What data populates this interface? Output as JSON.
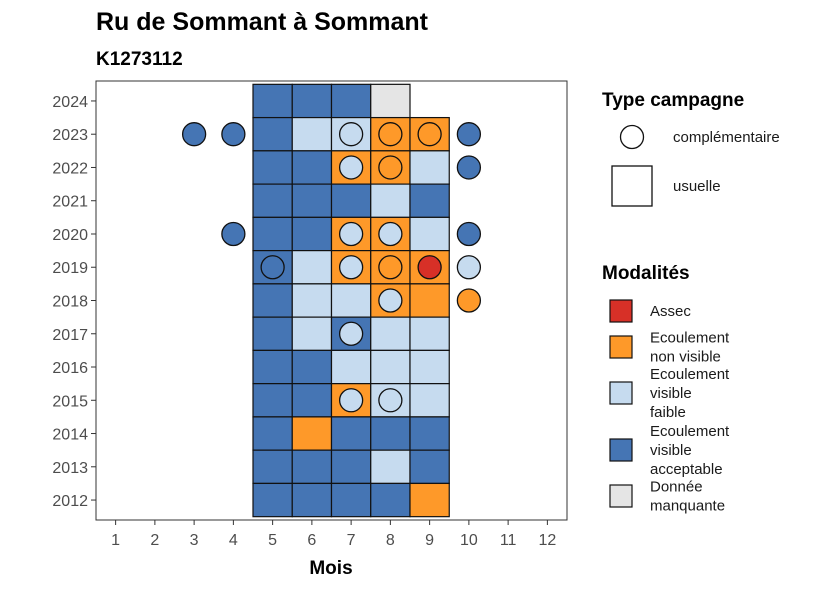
{
  "title": "Ru de Sommant à Sommant",
  "subtitle": "K1273112",
  "chart_data": {
    "type": "heatmap",
    "xlabel": "Mois",
    "ylabel": "",
    "x_ticks": [
      1,
      2,
      3,
      4,
      5,
      6,
      7,
      8,
      9,
      10,
      11,
      12
    ],
    "y_ticks": [
      2012,
      2013,
      2014,
      2015,
      2016,
      2017,
      2018,
      2019,
      2020,
      2021,
      2022,
      2023,
      2024
    ],
    "xlim": [
      0.5,
      12.5
    ],
    "ylim": [
      2011.4,
      2024.6
    ],
    "grid": false,
    "legend_position": "right",
    "colors": {
      "Assec": "#d73027",
      "Ecoulement non visible": "#fe9929",
      "Ecoulement visible faible": "#c6dbef",
      "Ecoulement visible acceptable": "#4575b4",
      "Donnée manquante": "#e5e5e5"
    },
    "usuelle": [
      {
        "year": 2024,
        "months": [
          [
            5,
            "Ecoulement visible acceptable"
          ],
          [
            6,
            "Ecoulement visible acceptable"
          ],
          [
            7,
            "Ecoulement visible acceptable"
          ],
          [
            8,
            "Donnée manquante"
          ]
        ]
      },
      {
        "year": 2023,
        "months": [
          [
            5,
            "Ecoulement visible acceptable"
          ],
          [
            6,
            "Ecoulement visible faible"
          ],
          [
            7,
            "Ecoulement visible faible"
          ],
          [
            8,
            "Ecoulement non visible"
          ],
          [
            9,
            "Ecoulement non visible"
          ]
        ]
      },
      {
        "year": 2022,
        "months": [
          [
            5,
            "Ecoulement visible acceptable"
          ],
          [
            6,
            "Ecoulement visible acceptable"
          ],
          [
            7,
            "Ecoulement non visible"
          ],
          [
            8,
            "Ecoulement non visible"
          ],
          [
            9,
            "Ecoulement visible faible"
          ]
        ]
      },
      {
        "year": 2021,
        "months": [
          [
            5,
            "Ecoulement visible acceptable"
          ],
          [
            6,
            "Ecoulement visible acceptable"
          ],
          [
            7,
            "Ecoulement visible acceptable"
          ],
          [
            8,
            "Ecoulement visible faible"
          ],
          [
            9,
            "Ecoulement visible acceptable"
          ]
        ]
      },
      {
        "year": 2020,
        "months": [
          [
            5,
            "Ecoulement visible acceptable"
          ],
          [
            6,
            "Ecoulement visible acceptable"
          ],
          [
            7,
            "Ecoulement non visible"
          ],
          [
            8,
            "Ecoulement non visible"
          ],
          [
            9,
            "Ecoulement visible faible"
          ]
        ]
      },
      {
        "year": 2019,
        "months": [
          [
            5,
            "Ecoulement visible acceptable"
          ],
          [
            6,
            "Ecoulement visible faible"
          ],
          [
            7,
            "Ecoulement non visible"
          ],
          [
            8,
            "Ecoulement non visible"
          ],
          [
            9,
            "Ecoulement non visible"
          ]
        ]
      },
      {
        "year": 2018,
        "months": [
          [
            5,
            "Ecoulement visible acceptable"
          ],
          [
            6,
            "Ecoulement visible faible"
          ],
          [
            7,
            "Ecoulement visible faible"
          ],
          [
            8,
            "Ecoulement non visible"
          ],
          [
            9,
            "Ecoulement non visible"
          ]
        ]
      },
      {
        "year": 2017,
        "months": [
          [
            5,
            "Ecoulement visible acceptable"
          ],
          [
            6,
            "Ecoulement visible faible"
          ],
          [
            7,
            "Ecoulement visible acceptable"
          ],
          [
            8,
            "Ecoulement visible faible"
          ],
          [
            9,
            "Ecoulement visible faible"
          ]
        ]
      },
      {
        "year": 2016,
        "months": [
          [
            5,
            "Ecoulement visible acceptable"
          ],
          [
            6,
            "Ecoulement visible acceptable"
          ],
          [
            7,
            "Ecoulement visible faible"
          ],
          [
            8,
            "Ecoulement visible faible"
          ],
          [
            9,
            "Ecoulement visible faible"
          ]
        ]
      },
      {
        "year": 2015,
        "months": [
          [
            5,
            "Ecoulement visible acceptable"
          ],
          [
            6,
            "Ecoulement visible acceptable"
          ],
          [
            7,
            "Ecoulement non visible"
          ],
          [
            8,
            "Ecoulement visible faible"
          ],
          [
            9,
            "Ecoulement visible faible"
          ]
        ]
      },
      {
        "year": 2014,
        "months": [
          [
            5,
            "Ecoulement visible acceptable"
          ],
          [
            6,
            "Ecoulement non visible"
          ],
          [
            7,
            "Ecoulement visible acceptable"
          ],
          [
            8,
            "Ecoulement visible acceptable"
          ],
          [
            9,
            "Ecoulement visible acceptable"
          ]
        ]
      },
      {
        "year": 2013,
        "months": [
          [
            5,
            "Ecoulement visible acceptable"
          ],
          [
            6,
            "Ecoulement visible acceptable"
          ],
          [
            7,
            "Ecoulement visible acceptable"
          ],
          [
            8,
            "Ecoulement visible faible"
          ],
          [
            9,
            "Ecoulement visible acceptable"
          ]
        ]
      },
      {
        "year": 2012,
        "months": [
          [
            5,
            "Ecoulement visible acceptable"
          ],
          [
            6,
            "Ecoulement visible acceptable"
          ],
          [
            7,
            "Ecoulement visible acceptable"
          ],
          [
            8,
            "Ecoulement visible acceptable"
          ],
          [
            9,
            "Ecoulement non visible"
          ]
        ]
      }
    ],
    "complementaire": [
      {
        "year": 2023,
        "month": 3,
        "modalite": "Ecoulement visible acceptable"
      },
      {
        "year": 2023,
        "month": 4,
        "modalite": "Ecoulement visible acceptable"
      },
      {
        "year": 2023,
        "month": 7,
        "modalite": "Ecoulement visible faible"
      },
      {
        "year": 2023,
        "month": 8,
        "modalite": "Ecoulement non visible"
      },
      {
        "year": 2023,
        "month": 9,
        "modalite": "Ecoulement non visible"
      },
      {
        "year": 2023,
        "month": 10,
        "modalite": "Ecoulement visible acceptable"
      },
      {
        "year": 2022,
        "month": 7,
        "modalite": "Ecoulement visible faible"
      },
      {
        "year": 2022,
        "month": 8,
        "modalite": "Ecoulement non visible"
      },
      {
        "year": 2022,
        "month": 10,
        "modalite": "Ecoulement visible acceptable"
      },
      {
        "year": 2020,
        "month": 4,
        "modalite": "Ecoulement visible acceptable"
      },
      {
        "year": 2020,
        "month": 7,
        "modalite": "Ecoulement visible faible"
      },
      {
        "year": 2020,
        "month": 8,
        "modalite": "Ecoulement visible faible"
      },
      {
        "year": 2020,
        "month": 10,
        "modalite": "Ecoulement visible acceptable"
      },
      {
        "year": 2019,
        "month": 5,
        "modalite": "Ecoulement visible acceptable"
      },
      {
        "year": 2019,
        "month": 7,
        "modalite": "Ecoulement visible faible"
      },
      {
        "year": 2019,
        "month": 8,
        "modalite": "Ecoulement non visible"
      },
      {
        "year": 2019,
        "month": 9,
        "modalite": "Assec"
      },
      {
        "year": 2019,
        "month": 10,
        "modalite": "Ecoulement visible faible"
      },
      {
        "year": 2018,
        "month": 8,
        "modalite": "Ecoulement visible faible"
      },
      {
        "year": 2018,
        "month": 10,
        "modalite": "Ecoulement non visible"
      },
      {
        "year": 2017,
        "month": 7,
        "modalite": "Ecoulement visible faible"
      },
      {
        "year": 2015,
        "month": 7,
        "modalite": "Ecoulement visible faible"
      },
      {
        "year": 2015,
        "month": 8,
        "modalite": "Ecoulement visible faible"
      }
    ]
  },
  "legend": {
    "type_title": "Type campagne",
    "type_items": [
      {
        "label": "complémentaire",
        "shape": "circle"
      },
      {
        "label": "usuelle",
        "shape": "square"
      }
    ],
    "modalites_title": "Modalités",
    "modalites_items": [
      {
        "lines": [
          "Assec"
        ],
        "key": "Assec"
      },
      {
        "lines": [
          "Ecoulement",
          "non visible"
        ],
        "key": "Ecoulement non visible"
      },
      {
        "lines": [
          "Ecoulement",
          "visible",
          "faible"
        ],
        "key": "Ecoulement visible faible"
      },
      {
        "lines": [
          "Ecoulement",
          "visible",
          "acceptable"
        ],
        "key": "Ecoulement visible acceptable"
      },
      {
        "lines": [
          "Donnée",
          "manquante"
        ],
        "key": "Donnée manquante"
      }
    ]
  }
}
